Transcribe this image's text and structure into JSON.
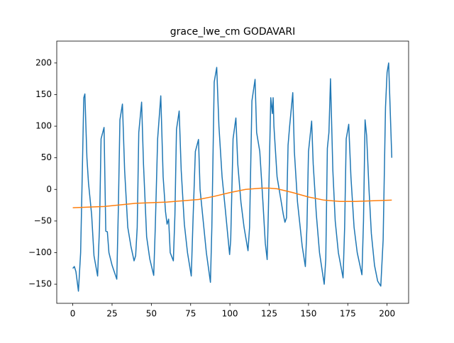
{
  "chart_data": {
    "type": "line",
    "title": "grace_lwe_cm GODAVARI",
    "xlim": [
      -10.2,
      213.7
    ],
    "ylim": [
      -180.2,
      234.6
    ],
    "xticks": [
      0,
      25,
      50,
      75,
      100,
      125,
      150,
      175,
      200
    ],
    "yticks": [
      {
        "value": -150,
        "label": "−150"
      },
      {
        "value": -100,
        "label": "−100"
      },
      {
        "value": -50,
        "label": "−50"
      },
      0,
      50,
      100,
      150,
      200
    ],
    "grid": false,
    "series": [
      {
        "color": "#1f77b4",
        "x": [
          0,
          1,
          2,
          3.6,
          5,
          6,
          7,
          7.7,
          9,
          10,
          12,
          13.5,
          15.8,
          17,
          18,
          19.9,
          21,
          22,
          23,
          25,
          28,
          29,
          30,
          31.6,
          33,
          35,
          37,
          39,
          40,
          41,
          42,
          43.8,
          45,
          47,
          49,
          51.5,
          52.5,
          54,
          56,
          57.5,
          59,
          60,
          61,
          62,
          64,
          65,
          66,
          67.7,
          69,
          71,
          73,
          75.4,
          76.5,
          78,
          80,
          81,
          83,
          85,
          87.6,
          88.5,
          90,
          91.6,
          93,
          95,
          97,
          99.8,
          100.5,
          102,
          103.8,
          105,
          107,
          109,
          111.5,
          112.5,
          114,
          116,
          117,
          119,
          121,
          122.5,
          123.7,
          124.5,
          126,
          127,
          127.5,
          128,
          130,
          132,
          134,
          135,
          136,
          137,
          138,
          140,
          141,
          143,
          146,
          148,
          149,
          150,
          152,
          153,
          155,
          157,
          160,
          161,
          162,
          163,
          164,
          165.5,
          167,
          169,
          172,
          173,
          174,
          175.6,
          177,
          179,
          181,
          184,
          185,
          186,
          187,
          188.5,
          190,
          192,
          194,
          196,
          197.5,
          199,
          200,
          201,
          203
        ],
        "values": [
          -125,
          -122,
          -130,
          -161,
          -100,
          20,
          145,
          151,
          50,
          10,
          -40,
          -105,
          -137,
          -60,
          80,
          98,
          -66,
          -67,
          -100,
          -120,
          -142,
          -30,
          110,
          135,
          30,
          -60,
          -90,
          -113,
          -105,
          -60,
          90,
          138,
          40,
          -75,
          -110,
          -136,
          -60,
          80,
          148,
          20,
          -35,
          -55,
          -47,
          -100,
          -113,
          -40,
          95,
          124,
          30,
          -55,
          -100,
          -137,
          -50,
          60,
          79,
          0,
          -50,
          -100,
          -147,
          -60,
          170,
          193,
          100,
          20,
          -30,
          -103,
          -80,
          80,
          113,
          40,
          -20,
          -60,
          -97,
          -60,
          140,
          174,
          90,
          60,
          -20,
          -85,
          -111,
          -30,
          145,
          120,
          145,
          100,
          20,
          -10,
          -40,
          -52,
          -45,
          70,
          100,
          153,
          60,
          -20,
          -90,
          -122,
          -60,
          60,
          108,
          40,
          -40,
          -100,
          -150,
          -110,
          65,
          90,
          175,
          30,
          -50,
          -100,
          -140,
          -60,
          80,
          103,
          20,
          -60,
          -100,
          -135,
          -50,
          110,
          85,
          0,
          -70,
          -120,
          -145,
          -153,
          -80,
          130,
          185,
          200,
          50
        ]
      },
      {
        "color": "#ff7f0e",
        "x": [
          0,
          20,
          40,
          60,
          80,
          90,
          100,
          110,
          120,
          125,
          130,
          140,
          150,
          160,
          170,
          180,
          190,
          203
        ],
        "values": [
          -29,
          -27,
          -22,
          -20,
          -16,
          -11,
          -5,
          0,
          2,
          2,
          1,
          -5,
          -12,
          -17,
          -19,
          -19,
          -18,
          -17
        ]
      }
    ]
  }
}
